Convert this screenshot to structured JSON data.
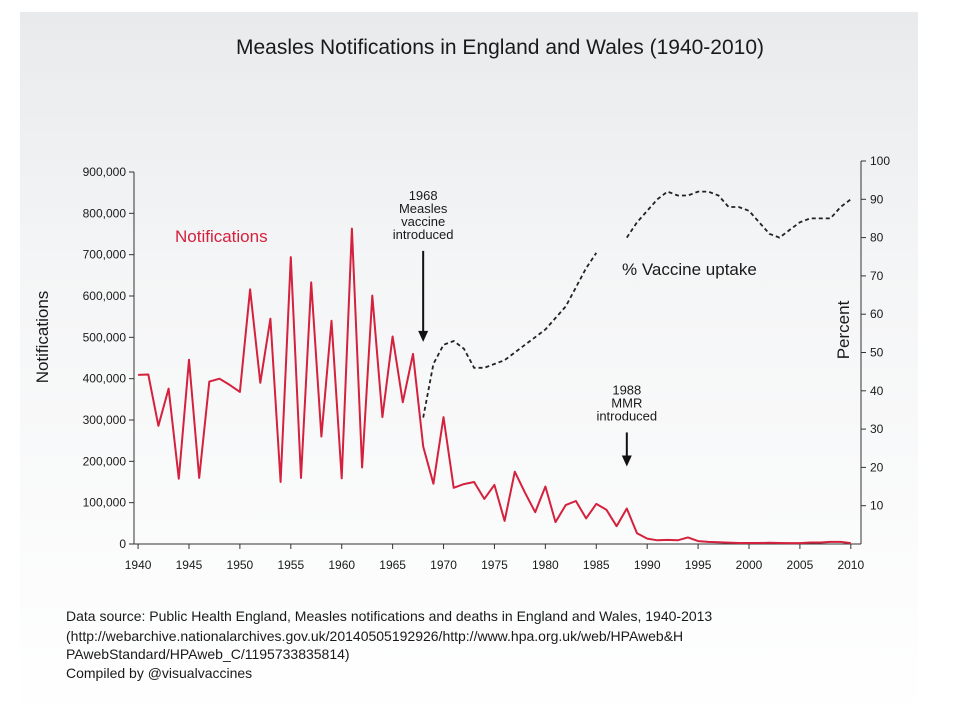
{
  "colors": {
    "notifications": "#d4213d",
    "vaccine_uptake": "#222222",
    "panel_background": "#f0f1f2",
    "axis": "#333333"
  },
  "source": {
    "line1": "Data source: Public Health England, Measles notifications and deaths in England and Wales, 1940-2013",
    "line2": "(http://webarchive.nationalarchives.gov.uk/20140505192926/http://www.hpa.org.uk/web/HPAweb&H",
    "line3": "PAwebStandard/HPAweb_C/1195733835814)",
    "line4": "Compiled by @visualvaccines"
  },
  "chart_data": {
    "type": "line",
    "title": "Measles Notifications in England and Wales (1940-2010)",
    "xlabel": "",
    "ylabel": "Notifications",
    "y2label": "Percent",
    "xlim": [
      1939.6,
      2011
    ],
    "ylim": [
      0,
      900000
    ],
    "y2lim": [
      0,
      100
    ],
    "grid": false,
    "x_ticks": [
      1940,
      1945,
      1950,
      1955,
      1960,
      1965,
      1970,
      1975,
      1980,
      1985,
      1990,
      1995,
      2000,
      2005,
      2010
    ],
    "y_ticks": [
      0,
      100000,
      200000,
      300000,
      400000,
      500000,
      600000,
      700000,
      800000,
      900000
    ],
    "y_tick_labels": [
      "0",
      "100,000",
      "200,000",
      "300,000",
      "400,000",
      "500,000",
      "600,000",
      "700,000",
      "800,000",
      "900,000"
    ],
    "y2_ticks": [
      10,
      20,
      30,
      40,
      50,
      60,
      70,
      80,
      90,
      100
    ],
    "series": [
      {
        "name": "Notifications",
        "axis": "left",
        "style": "solid",
        "x": [
          1940,
          1941,
          1942,
          1943,
          1944,
          1945,
          1946,
          1947,
          1948,
          1949,
          1950,
          1951,
          1952,
          1953,
          1954,
          1955,
          1956,
          1957,
          1958,
          1959,
          1960,
          1961,
          1962,
          1963,
          1964,
          1965,
          1966,
          1967,
          1968,
          1969,
          1970,
          1971,
          1972,
          1973,
          1974,
          1975,
          1976,
          1977,
          1978,
          1979,
          1980,
          1981,
          1982,
          1983,
          1984,
          1985,
          1986,
          1987,
          1988,
          1989,
          1990,
          1991,
          1992,
          1993,
          1994,
          1995,
          1996,
          1997,
          1998,
          1999,
          2000,
          2001,
          2002,
          2003,
          2004,
          2005,
          2006,
          2007,
          2008,
          2009,
          2010
        ],
        "values": [
          409000,
          410000,
          286000,
          376000,
          158000,
          446000,
          160000,
          393000,
          400000,
          385000,
          368000,
          616000,
          390000,
          545000,
          150000,
          694000,
          160000,
          633000,
          260000,
          540000,
          159000,
          763000,
          185000,
          601000,
          307000,
          502000,
          343000,
          460000,
          236000,
          146000,
          307000,
          136000,
          145000,
          150000,
          109000,
          143000,
          56000,
          175000,
          124000,
          77000,
          139000,
          53000,
          94000,
          104000,
          62000,
          97000,
          83000,
          43000,
          86000,
          26000,
          13000,
          9000,
          10000,
          9000,
          16000,
          7000,
          5000,
          4000,
          3500,
          2500,
          2400,
          2300,
          3000,
          2500,
          2100,
          2100,
          3700,
          3700,
          5100,
          5000,
          2200
        ]
      },
      {
        "name": "% Vaccine uptake",
        "axis": "right",
        "style": "dashed",
        "segments": [
          {
            "x": [
              1968,
              1969,
              1970,
              1971,
              1972,
              1973,
              1974,
              1975,
              1976,
              1977,
              1978,
              1979,
              1980,
              1981,
              1982,
              1983,
              1984,
              1985
            ],
            "values": [
              33,
              47,
              52,
              53,
              51,
              46,
              46,
              47,
              48,
              50,
              52,
              54,
              56,
              59,
              62,
              67,
              72,
              76
            ]
          },
          {
            "x": [
              1988,
              1989,
              1990,
              1991,
              1992,
              1993,
              1994,
              1995,
              1996,
              1997,
              1998,
              1999,
              2000,
              2001,
              2002,
              2003,
              2004,
              2005,
              2006,
              2007,
              2008,
              2009,
              2010
            ],
            "values": [
              80,
              84,
              87,
              90,
              92,
              91,
              91,
              92,
              92,
              91,
              88,
              88,
              87,
              84,
              81,
              80,
              82,
              84,
              85,
              85,
              85,
              88,
              90
            ]
          }
        ]
      }
    ],
    "annotations": [
      {
        "name": "vaccine-1968",
        "lines": [
          "1968",
          "Measles",
          "vaccine",
          "introduced"
        ],
        "x": 1968,
        "y": 460000
      },
      {
        "name": "mmr-1988",
        "lines": [
          "1988",
          "MMR",
          "introduced"
        ],
        "x": 1988,
        "y": 86000
      }
    ]
  }
}
